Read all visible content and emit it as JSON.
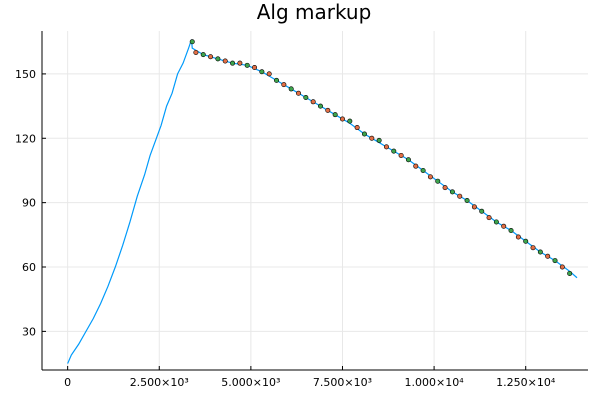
{
  "chart_data": {
    "type": "line",
    "title": "Alg markup",
    "xlabel": "",
    "ylabel": "",
    "xlim": [
      -700,
      14200
    ],
    "ylim": [
      12,
      170
    ],
    "grid": true,
    "legend": false,
    "colors": {
      "line": "#009AFA",
      "marker_a": "#3DA44D",
      "marker_b": "#E26F46"
    },
    "x_ticks": [
      {
        "value": 0,
        "label": "0"
      },
      {
        "value": 2500,
        "label": "2.500×10³"
      },
      {
        "value": 5000,
        "label": "5.000×10³"
      },
      {
        "value": 7500,
        "label": "7.500×10³"
      },
      {
        "value": 10000,
        "label": "1.000×10⁴"
      },
      {
        "value": 12500,
        "label": "1.250×10⁴"
      }
    ],
    "y_ticks": [
      {
        "value": 30,
        "label": "30"
      },
      {
        "value": 60,
        "label": "60"
      },
      {
        "value": 90,
        "label": "90"
      },
      {
        "value": 120,
        "label": "120"
      },
      {
        "value": 150,
        "label": "150"
      }
    ],
    "series": [
      {
        "type": "line",
        "x": [
          0,
          100,
          300,
          500,
          700,
          900,
          1100,
          1300,
          1500,
          1700,
          1900,
          2100,
          2250,
          2400,
          2550,
          2700,
          2850,
          3000,
          3150,
          3300,
          3380,
          3400,
          3700,
          4100,
          4500,
          4900,
          5300,
          5700,
          6100,
          6500,
          6900,
          7300,
          7700,
          8100,
          8500,
          8900,
          9300,
          9700,
          10100,
          10500,
          10900,
          11300,
          11700,
          12100,
          12500,
          12900,
          13300,
          13700,
          13900
        ],
        "y": [
          15,
          19,
          24,
          30,
          36,
          43,
          51,
          60,
          70,
          81,
          93,
          103,
          112,
          119,
          126,
          135,
          141,
          150,
          155,
          162,
          166,
          162,
          159,
          157,
          155,
          154,
          151,
          147,
          143,
          139,
          135,
          131,
          127,
          122,
          118,
          114,
          110,
          105,
          100,
          95,
          91,
          86,
          81,
          77,
          72,
          67,
          63,
          58,
          55
        ]
      },
      {
        "type": "scatter",
        "color_key": "marker_a",
        "x": [
          3400,
          3700,
          4100,
          4500,
          4900,
          5300,
          5700,
          6100,
          6500,
          6900,
          7300,
          7700,
          8100,
          8500,
          8900,
          9300,
          9700,
          10100,
          10500,
          10900,
          11300,
          11700,
          12100,
          12500,
          12900,
          13300,
          13700
        ],
        "y": [
          165,
          159,
          157,
          155,
          154,
          151,
          147,
          143,
          139,
          135,
          131,
          128,
          122,
          119,
          114,
          110,
          105,
          100,
          95,
          91,
          86,
          81,
          77,
          72,
          67,
          63,
          57
        ]
      },
      {
        "type": "scatter",
        "color_key": "marker_b",
        "x": [
          3500,
          3900,
          4300,
          4700,
          5100,
          5500,
          5900,
          6300,
          6700,
          7100,
          7500,
          7900,
          8300,
          8700,
          9100,
          9500,
          9900,
          10300,
          10700,
          11100,
          11500,
          11900,
          12300,
          12700,
          13100,
          13500
        ],
        "y": [
          160,
          158,
          156,
          155,
          153,
          150,
          145,
          141,
          137,
          133,
          129,
          125,
          120,
          116,
          112,
          107,
          102,
          97,
          93,
          88,
          83,
          79,
          74,
          69,
          65,
          60
        ]
      }
    ]
  }
}
